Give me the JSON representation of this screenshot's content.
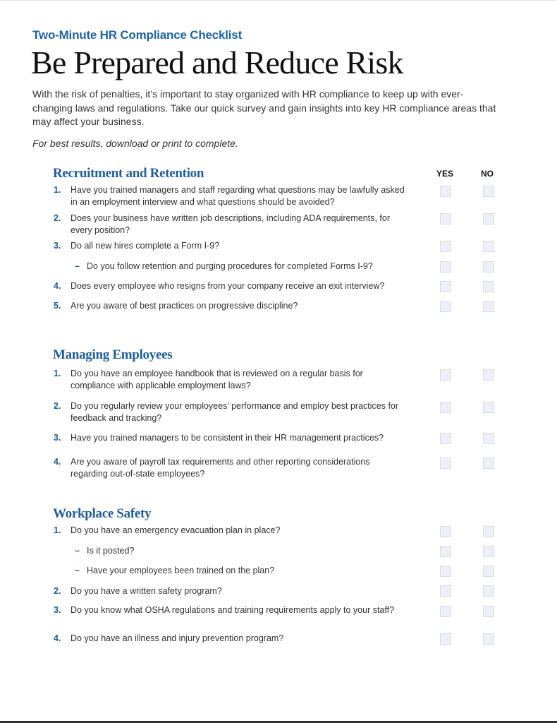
{
  "header": {
    "eyebrow": "Two-Minute HR Compliance Checklist",
    "title": "Be Prepared and Reduce Risk",
    "intro": "With the risk of penalties, it’s important to stay organized with HR compliance to keep up with ever-changing laws and regulations. Take our quick survey and gain insights into key HR compliance areas that may affect your business.",
    "note": "For best results, download or print to complete."
  },
  "columns": {
    "yes": "YES",
    "no": "NO"
  },
  "colors": {
    "accent": "#1f5f99",
    "checkbox_fill": "#eef0f8"
  },
  "sections": [
    {
      "title": "Recruitment and Retention",
      "items": [
        {
          "marker": "1.",
          "text": "Have you trained managers and staff regarding what questions may be lawfully asked in an employment interview and what questions should be avoided?",
          "yes": false,
          "no": false
        },
        {
          "marker": "2.",
          "text": "Does your business have written job descriptions, including ADA requirements, for every position?",
          "yes": false,
          "no": false
        },
        {
          "marker": "3.",
          "text": "Do all new hires complete a Form I-9?",
          "yes": false,
          "no": false
        },
        {
          "marker": "–",
          "sub": true,
          "text": "Do you follow retention and purging procedures for completed Forms I-9?",
          "yes": false,
          "no": false
        },
        {
          "marker": "4.",
          "text": "Does every employee who resigns from your company receive an exit interview?",
          "yes": false,
          "no": false
        },
        {
          "marker": "5.",
          "text": "Are you aware of best practices on progressive discipline?",
          "yes": false,
          "no": false
        }
      ]
    },
    {
      "title": "Managing Employees",
      "items": [
        {
          "marker": "1.",
          "text": "Do you have an employee handbook that is reviewed on a regular basis for compliance with applicable employment laws?",
          "yes": false,
          "no": false
        },
        {
          "marker": "2.",
          "text": "Do you regularly review your employees’ performance and employ best practices for feedback and tracking?",
          "yes": false,
          "no": false
        },
        {
          "marker": "3.",
          "text": "Have you trained managers to be consistent in their HR management practices?",
          "yes": false,
          "no": false
        },
        {
          "marker": "4.",
          "text": "Are you aware of payroll tax requirements and other reporting considerations regarding out-of-state employees?",
          "yes": false,
          "no": false
        }
      ]
    },
    {
      "title": "Workplace Safety",
      "items": [
        {
          "marker": "1.",
          "text": "Do you have an emergency evacuation plan in place?",
          "yes": false,
          "no": false
        },
        {
          "marker": "–",
          "sub": true,
          "text": "Is it posted?",
          "yes": false,
          "no": false
        },
        {
          "marker": "–",
          "sub": true,
          "text": "Have your employees been trained on the plan?",
          "yes": false,
          "no": false
        },
        {
          "marker": "2.",
          "text": "Do you have a written safety program?",
          "yes": false,
          "no": false
        },
        {
          "marker": "3.",
          "text": "Do you know what OSHA regulations and training requirements apply to your staff?",
          "yes": false,
          "no": false
        },
        {
          "marker": "4.",
          "text": "Do you have an illness and injury prevention program?",
          "yes": false,
          "no": false
        }
      ]
    }
  ]
}
